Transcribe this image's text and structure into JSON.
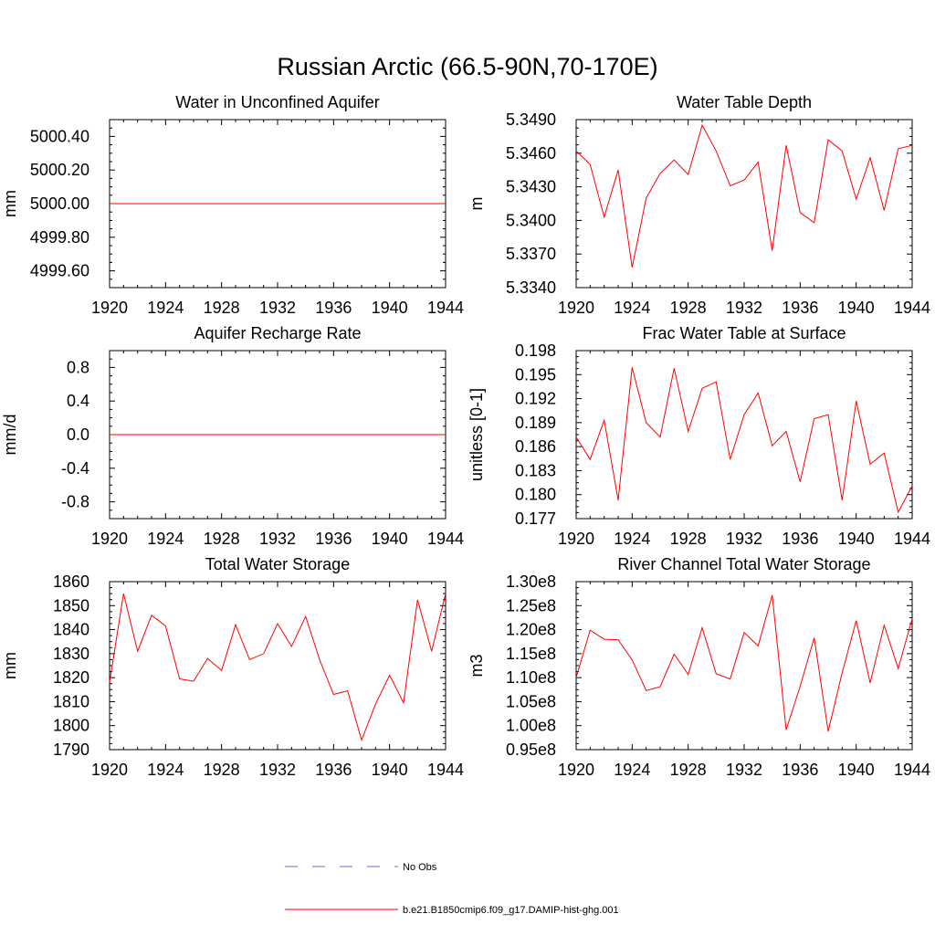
{
  "figure": {
    "title": "Russian Arctic (66.5-90N,70-170E)"
  },
  "legend": {
    "items": [
      {
        "label": "No Obs",
        "color": "#6b6bd6",
        "dashed": true
      },
      {
        "label": "b.e21.B1850cmip6.f09_g17.DAMIP-hist-ghg.001",
        "color": "#ff0000",
        "dashed": false
      }
    ]
  },
  "chart_data": [
    {
      "type": "line",
      "title": "Water in Unconfined Aquifer",
      "ylabel": "mm",
      "xlim": [
        1920,
        1944
      ],
      "ylim": [
        4999.5,
        5000.5
      ],
      "xticks": [
        "1920",
        "1924",
        "1928",
        "1932",
        "1936",
        "1940",
        "1944"
      ],
      "yticks": [
        "4999.60",
        "4999.80",
        "5000.00",
        "5000.20",
        "5000.40"
      ],
      "series": [
        {
          "color": "#ff0000",
          "x": [
            1920,
            1921,
            1922,
            1923,
            1924,
            1925,
            1926,
            1927,
            1928,
            1929,
            1930,
            1931,
            1932,
            1933,
            1934,
            1935,
            1936,
            1937,
            1938,
            1939,
            1940,
            1941,
            1942,
            1943,
            1944
          ],
          "values": [
            5000,
            5000,
            5000,
            5000,
            5000,
            5000,
            5000,
            5000,
            5000,
            5000,
            5000,
            5000,
            5000,
            5000,
            5000,
            5000,
            5000,
            5000,
            5000,
            5000,
            5000,
            5000,
            5000,
            5000,
            5000
          ]
        }
      ]
    },
    {
      "type": "line",
      "title": "Water Table Depth",
      "ylabel": "m",
      "xlim": [
        1920,
        1944
      ],
      "ylim": [
        5.334,
        5.349
      ],
      "xticks": [
        "1920",
        "1924",
        "1928",
        "1932",
        "1936",
        "1940",
        "1944"
      ],
      "yticks": [
        "5.3340",
        "5.3370",
        "5.3400",
        "5.3430",
        "5.3460",
        "5.3490"
      ],
      "series": [
        {
          "color": "#ff0000",
          "x": [
            1920,
            1921,
            1922,
            1923,
            1924,
            1925,
            1926,
            1927,
            1928,
            1929,
            1930,
            1931,
            1932,
            1933,
            1934,
            1935,
            1936,
            1937,
            1938,
            1939,
            1940,
            1941,
            1942,
            1943,
            1944
          ],
          "values": [
            5.3462,
            5.345,
            5.3403,
            5.3445,
            5.3358,
            5.342,
            5.3442,
            5.3454,
            5.3441,
            5.3485,
            5.3462,
            5.3431,
            5.3436,
            5.3452,
            5.3373,
            5.3467,
            5.3407,
            5.3398,
            5.3472,
            5.3462,
            5.3419,
            5.3456,
            5.3409,
            5.3464,
            5.3467
          ]
        }
      ]
    },
    {
      "type": "line",
      "title": "Aquifer Recharge Rate",
      "ylabel": "mm/d",
      "xlim": [
        1920,
        1944
      ],
      "ylim": [
        -1.0,
        1.0
      ],
      "xticks": [
        "1920",
        "1924",
        "1928",
        "1932",
        "1936",
        "1940",
        "1944"
      ],
      "yticks": [
        "-0.8",
        "-0.4",
        "0.0",
        "0.4",
        "0.8"
      ],
      "series": [
        {
          "color": "#ff0000",
          "x": [
            1920,
            1921,
            1922,
            1923,
            1924,
            1925,
            1926,
            1927,
            1928,
            1929,
            1930,
            1931,
            1932,
            1933,
            1934,
            1935,
            1936,
            1937,
            1938,
            1939,
            1940,
            1941,
            1942,
            1943,
            1944
          ],
          "values": [
            0,
            0,
            0,
            0,
            0,
            0,
            0,
            0,
            0,
            0,
            0,
            0,
            0,
            0,
            0,
            0,
            0,
            0,
            0,
            0,
            0,
            0,
            0,
            0,
            0
          ]
        }
      ]
    },
    {
      "type": "line",
      "title": "Frac Water Table at Surface",
      "ylabel": "unitless [0-1]",
      "xlim": [
        1920,
        1944
      ],
      "ylim": [
        0.177,
        0.198
      ],
      "xticks": [
        "1920",
        "1924",
        "1928",
        "1932",
        "1936",
        "1940",
        "1944"
      ],
      "yticks": [
        "0.177",
        "0.180",
        "0.183",
        "0.186",
        "0.189",
        "0.192",
        "0.195",
        "0.198"
      ],
      "series": [
        {
          "color": "#ff0000",
          "x": [
            1920,
            1921,
            1922,
            1923,
            1924,
            1925,
            1926,
            1927,
            1928,
            1929,
            1930,
            1931,
            1932,
            1933,
            1934,
            1935,
            1936,
            1937,
            1938,
            1939,
            1940,
            1941,
            1942,
            1943,
            1944
          ],
          "values": [
            0.1872,
            0.1844,
            0.1893,
            0.1793,
            0.1959,
            0.189,
            0.1872,
            0.1958,
            0.1879,
            0.1933,
            0.1941,
            0.1844,
            0.19,
            0.1927,
            0.1861,
            0.1879,
            0.1816,
            0.1895,
            0.19,
            0.1793,
            0.1917,
            0.1838,
            0.1852,
            0.1778,
            0.1811
          ]
        }
      ]
    },
    {
      "type": "line",
      "title": "Total Water Storage",
      "ylabel": "mm",
      "xlim": [
        1920,
        1944
      ],
      "ylim": [
        1790,
        1860
      ],
      "xticks": [
        "1920",
        "1924",
        "1928",
        "1932",
        "1936",
        "1940",
        "1944"
      ],
      "yticks": [
        "1790",
        "1800",
        "1810",
        "1820",
        "1830",
        "1840",
        "1850",
        "1860"
      ],
      "series": [
        {
          "color": "#ff0000",
          "x": [
            1920,
            1921,
            1922,
            1923,
            1924,
            1925,
            1926,
            1927,
            1928,
            1929,
            1930,
            1931,
            1932,
            1933,
            1934,
            1935,
            1936,
            1937,
            1938,
            1939,
            1940,
            1941,
            1942,
            1943,
            1944
          ],
          "values": [
            1818.0,
            1855.0,
            1831.0,
            1846.0,
            1841.5,
            1819.5,
            1818.5,
            1828.0,
            1823.0,
            1842.0,
            1827.5,
            1830.0,
            1842.5,
            1833.0,
            1845.5,
            1827.5,
            1813.0,
            1814.5,
            1794.0,
            1809.0,
            1821.0,
            1809.5,
            1852.5,
            1831.0,
            1855.0
          ]
        }
      ]
    },
    {
      "type": "line",
      "title": "River Channel Total Water Storage",
      "ylabel": "m3",
      "xlim": [
        1920,
        1944
      ],
      "ylim": [
        95000000,
        130000000
      ],
      "xticks": [
        "1920",
        "1924",
        "1928",
        "1932",
        "1936",
        "1940",
        "1944"
      ],
      "yticks": [
        "0.95e8",
        "1.00e8",
        "1.05e8",
        "1.10e8",
        "1.15e8",
        "1.20e8",
        "1.25e8",
        "1.30e8"
      ],
      "series": [
        {
          "color": "#ff0000",
          "x": [
            1920,
            1921,
            1922,
            1923,
            1924,
            1925,
            1926,
            1927,
            1928,
            1929,
            1930,
            1931,
            1932,
            1933,
            1934,
            1935,
            1936,
            1937,
            1938,
            1939,
            1940,
            1941,
            1942,
            1943,
            1944
          ],
          "values": [
            110000000,
            119900000,
            118000000,
            117900000,
            113700000,
            107300000,
            108100000,
            114900000,
            110700000,
            120400000,
            110800000,
            109700000,
            119400000,
            116600000,
            127200000,
            99100000,
            108200000,
            118300000,
            98800000,
            111000000,
            121900000,
            108900000,
            120900000,
            111900000,
            122300000
          ]
        }
      ]
    }
  ]
}
